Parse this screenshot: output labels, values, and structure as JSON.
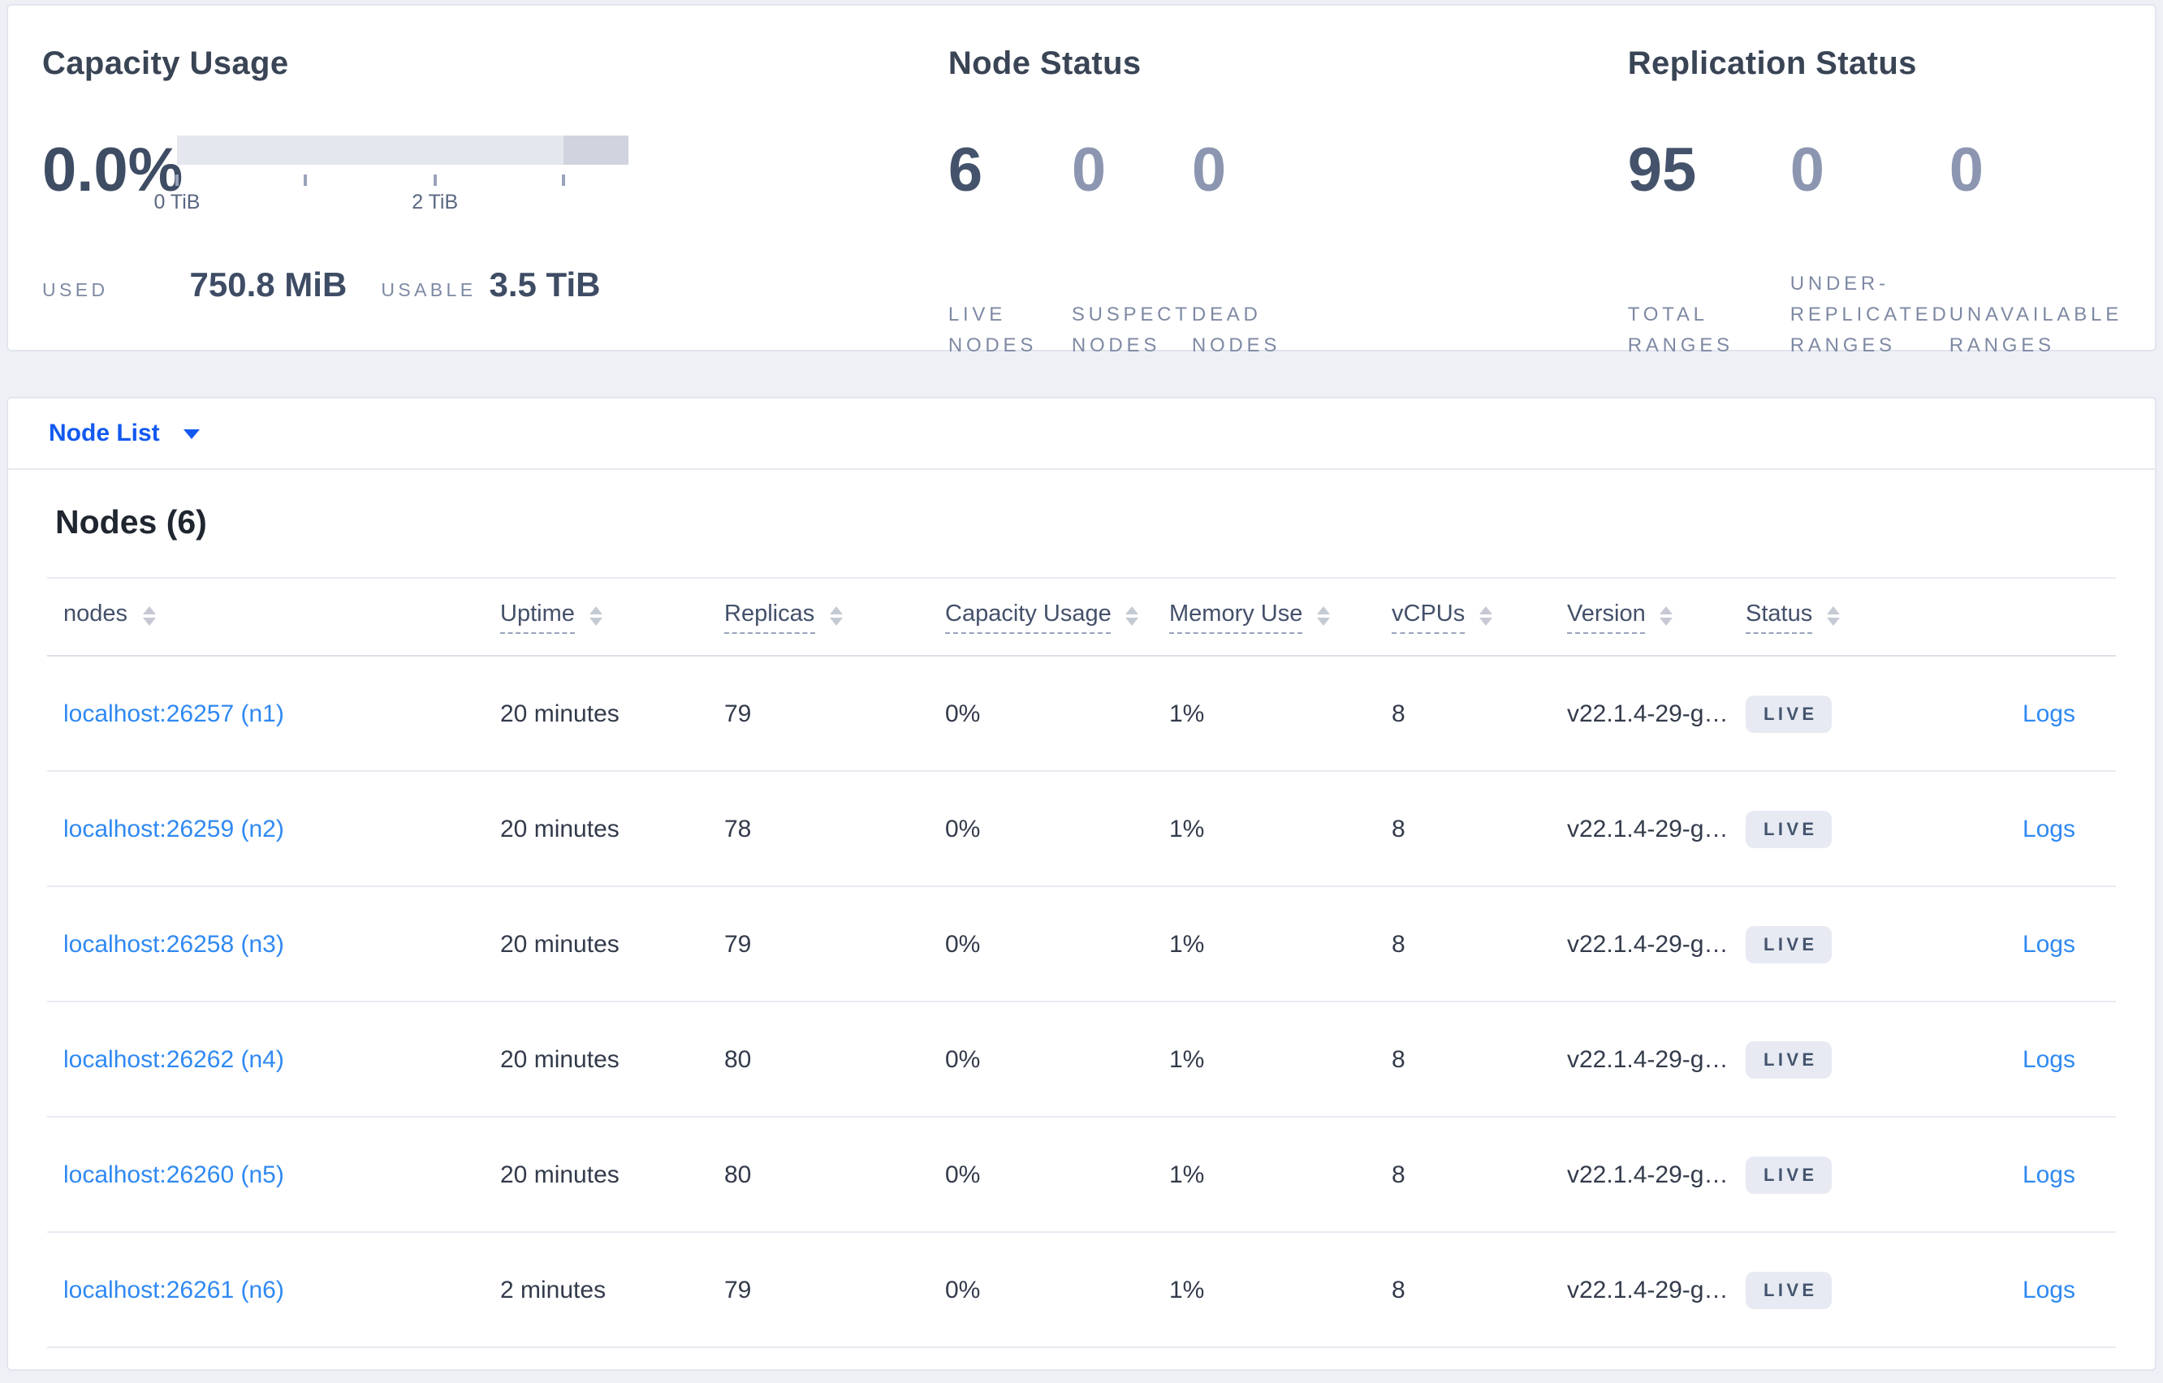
{
  "colors": {
    "page_bg": "#eef0f6",
    "nodelist_blue": "#1259f0",
    "link_blue": "#2f89f2",
    "badge_bg": "#e7eaf2",
    "badge_text": "#44546e",
    "bar_light": "#e5e7ef",
    "bar_dark": "#d1d4de"
  },
  "capacity": {
    "title": "Capacity Usage",
    "percent": "0.0%",
    "bar": {
      "total_tib": 3.5,
      "dark_segment_start_pct": 85.71,
      "ticks_pct": [
        0,
        28.57,
        57.14,
        85.71
      ],
      "tick_labels": [
        {
          "text": "0 TiB",
          "pct": 0
        },
        {
          "text": "2 TiB",
          "pct": 57.14
        }
      ]
    },
    "used_label": "USED",
    "used_value": "750.8 MiB",
    "usable_label": "USABLE",
    "usable_value": "3.5 TiB"
  },
  "node_status": {
    "title": "Node Status",
    "stats": [
      {
        "value": "6",
        "emphasis": "dark",
        "label_lines": [
          "LIVE",
          "NODES"
        ]
      },
      {
        "value": "0",
        "emphasis": "light",
        "label_lines": [
          "SUSPECT",
          "NODES"
        ]
      },
      {
        "value": "0",
        "emphasis": "light",
        "label_lines": [
          "DEAD",
          "NODES"
        ]
      }
    ]
  },
  "replication_status": {
    "title": "Replication Status",
    "stats": [
      {
        "value": "95",
        "emphasis": "dark",
        "label_lines": [
          "TOTAL",
          "RANGES"
        ]
      },
      {
        "value": "0",
        "emphasis": "light",
        "label_lines": [
          "UNDER-",
          "REPLICATED",
          "RANGES"
        ]
      },
      {
        "value": "0",
        "emphasis": "light",
        "label_lines": [
          "UNAVAILABLE",
          "RANGES"
        ]
      }
    ]
  },
  "node_list": {
    "label": "Node List"
  },
  "nodes_section": {
    "title": "Nodes (6)",
    "columns": [
      {
        "label": "nodes",
        "underlined": false,
        "class": "col-nodes"
      },
      {
        "label": "Uptime",
        "underlined": true,
        "class": "col-uptime"
      },
      {
        "label": "Replicas",
        "underlined": true,
        "class": "col-replicas"
      },
      {
        "label": "Capacity Usage",
        "underlined": true,
        "class": "col-capacity"
      },
      {
        "label": "Memory Use",
        "underlined": true,
        "class": "col-memory"
      },
      {
        "label": "vCPUs",
        "underlined": true,
        "class": "col-vcpus"
      },
      {
        "label": "Version",
        "underlined": true,
        "class": "col-version"
      },
      {
        "label": "Status",
        "underlined": true,
        "class": "col-status"
      }
    ],
    "rows": [
      {
        "node": "localhost:26257 (n1)",
        "uptime": "20 minutes",
        "replicas": "79",
        "capacity_usage": "0%",
        "memory_use": "1%",
        "vcpus": "8",
        "version": "v22.1.4-29-g…",
        "status": "LIVE",
        "logs": "Logs"
      },
      {
        "node": "localhost:26259 (n2)",
        "uptime": "20 minutes",
        "replicas": "78",
        "capacity_usage": "0%",
        "memory_use": "1%",
        "vcpus": "8",
        "version": "v22.1.4-29-g…",
        "status": "LIVE",
        "logs": "Logs"
      },
      {
        "node": "localhost:26258 (n3)",
        "uptime": "20 minutes",
        "replicas": "79",
        "capacity_usage": "0%",
        "memory_use": "1%",
        "vcpus": "8",
        "version": "v22.1.4-29-g…",
        "status": "LIVE",
        "logs": "Logs"
      },
      {
        "node": "localhost:26262 (n4)",
        "uptime": "20 minutes",
        "replicas": "80",
        "capacity_usage": "0%",
        "memory_use": "1%",
        "vcpus": "8",
        "version": "v22.1.4-29-g…",
        "status": "LIVE",
        "logs": "Logs"
      },
      {
        "node": "localhost:26260 (n5)",
        "uptime": "20 minutes",
        "replicas": "80",
        "capacity_usage": "0%",
        "memory_use": "1%",
        "vcpus": "8",
        "version": "v22.1.4-29-g…",
        "status": "LIVE",
        "logs": "Logs"
      },
      {
        "node": "localhost:26261 (n6)",
        "uptime": "2 minutes",
        "replicas": "79",
        "capacity_usage": "0%",
        "memory_use": "1%",
        "vcpus": "8",
        "version": "v22.1.4-29-g…",
        "status": "LIVE",
        "logs": "Logs"
      }
    ]
  }
}
